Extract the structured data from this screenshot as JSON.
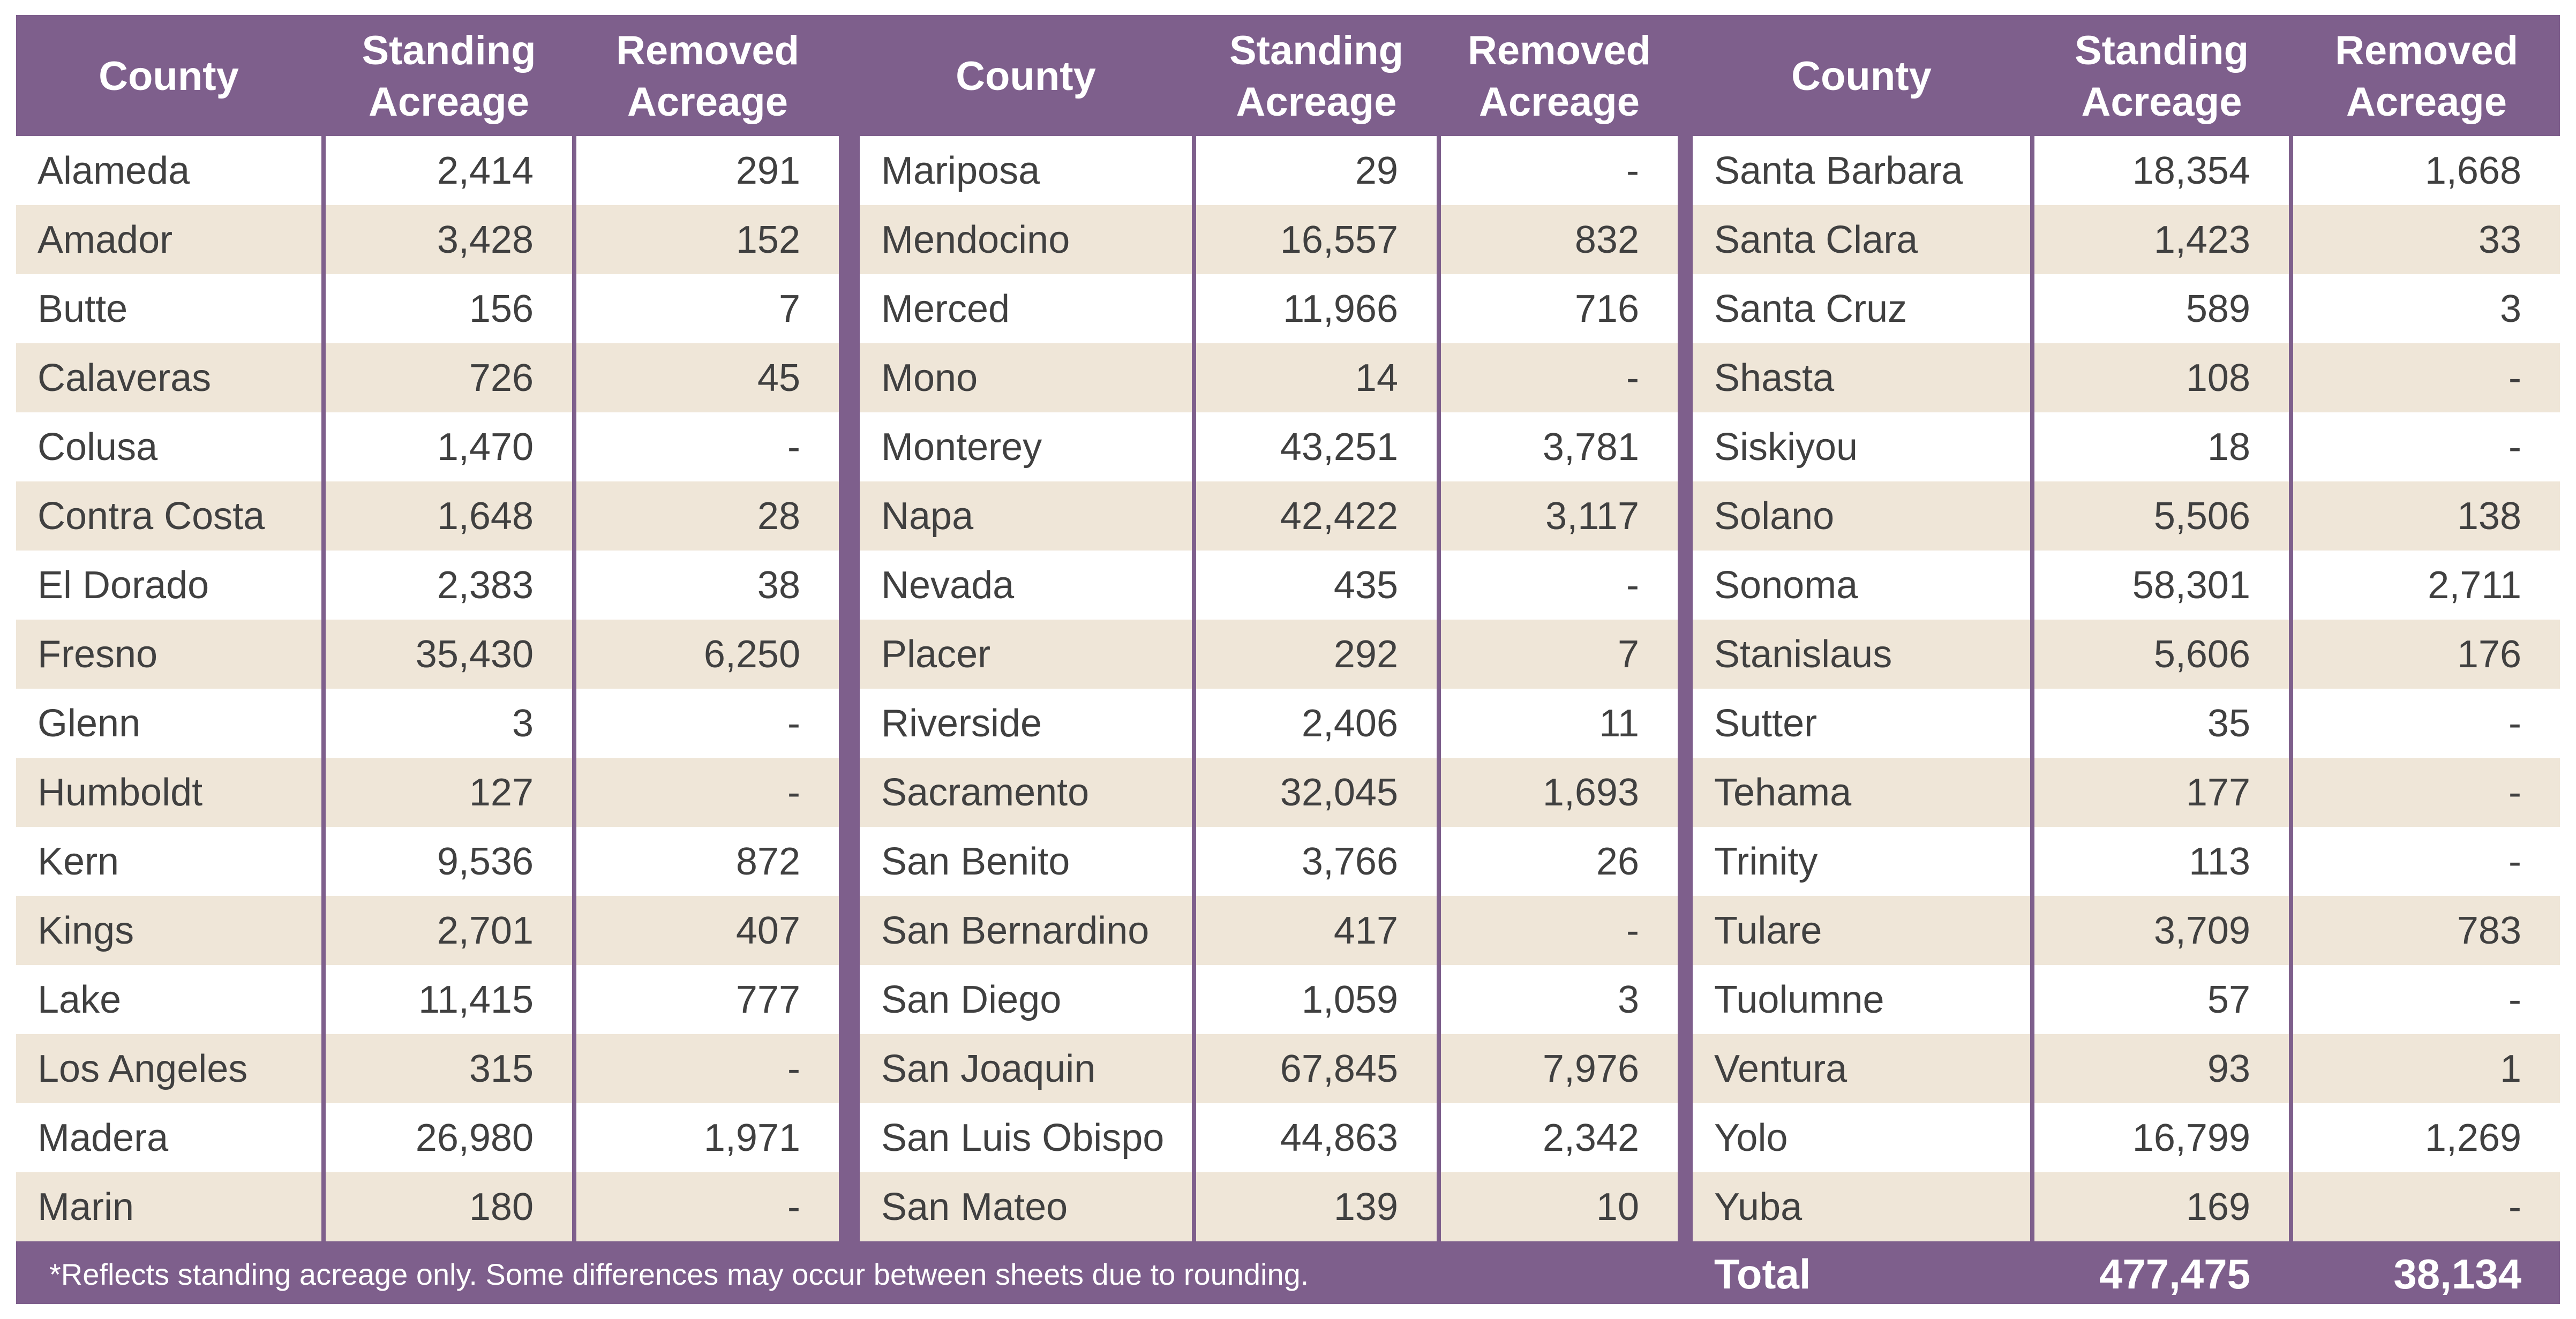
{
  "headers": {
    "county": "County",
    "standing": "Standing Acreage",
    "removed": "Removed Acreage"
  },
  "panels": [
    {
      "rows": [
        {
          "county": "Alameda",
          "standing": "2,414",
          "removed": "291"
        },
        {
          "county": "Amador",
          "standing": "3,428",
          "removed": "152"
        },
        {
          "county": "Butte",
          "standing": "156",
          "removed": "7"
        },
        {
          "county": "Calaveras",
          "standing": "726",
          "removed": "45"
        },
        {
          "county": "Colusa",
          "standing": "1,470",
          "removed": "-"
        },
        {
          "county": "Contra Costa",
          "standing": "1,648",
          "removed": "28"
        },
        {
          "county": "El Dorado",
          "standing": "2,383",
          "removed": "38"
        },
        {
          "county": "Fresno",
          "standing": "35,430",
          "removed": "6,250"
        },
        {
          "county": "Glenn",
          "standing": "3",
          "removed": "-"
        },
        {
          "county": "Humboldt",
          "standing": "127",
          "removed": "-"
        },
        {
          "county": "Kern",
          "standing": "9,536",
          "removed": "872"
        },
        {
          "county": "Kings",
          "standing": "2,701",
          "removed": "407"
        },
        {
          "county": "Lake",
          "standing": "11,415",
          "removed": "777"
        },
        {
          "county": "Los Angeles",
          "standing": "315",
          "removed": "-"
        },
        {
          "county": "Madera",
          "standing": "26,980",
          "removed": "1,971"
        },
        {
          "county": "Marin",
          "standing": "180",
          "removed": "-"
        }
      ]
    },
    {
      "rows": [
        {
          "county": "Mariposa",
          "standing": "29",
          "removed": "-"
        },
        {
          "county": "Mendocino",
          "standing": "16,557",
          "removed": "832"
        },
        {
          "county": "Merced",
          "standing": "11,966",
          "removed": "716"
        },
        {
          "county": "Mono",
          "standing": "14",
          "removed": "-"
        },
        {
          "county": "Monterey",
          "standing": "43,251",
          "removed": "3,781"
        },
        {
          "county": "Napa",
          "standing": "42,422",
          "removed": "3,117"
        },
        {
          "county": "Nevada",
          "standing": "435",
          "removed": "-"
        },
        {
          "county": "Placer",
          "standing": "292",
          "removed": "7"
        },
        {
          "county": "Riverside",
          "standing": "2,406",
          "removed": "11"
        },
        {
          "county": "Sacramento",
          "standing": "32,045",
          "removed": "1,693"
        },
        {
          "county": "San Benito",
          "standing": "3,766",
          "removed": "26"
        },
        {
          "county": "San Bernardino",
          "standing": "417",
          "removed": "-"
        },
        {
          "county": "San Diego",
          "standing": "1,059",
          "removed": "3"
        },
        {
          "county": "San Joaquin",
          "standing": "67,845",
          "removed": "7,976"
        },
        {
          "county": "San Luis Obispo",
          "standing": "44,863",
          "removed": "2,342"
        },
        {
          "county": "San Mateo",
          "standing": "139",
          "removed": "10"
        }
      ]
    },
    {
      "rows": [
        {
          "county": "Santa Barbara",
          "standing": "18,354",
          "removed": "1,668"
        },
        {
          "county": "Santa Clara",
          "standing": "1,423",
          "removed": "33"
        },
        {
          "county": "Santa Cruz",
          "standing": "589",
          "removed": "3"
        },
        {
          "county": "Shasta",
          "standing": "108",
          "removed": "-"
        },
        {
          "county": "Siskiyou",
          "standing": "18",
          "removed": "-"
        },
        {
          "county": "Solano",
          "standing": "5,506",
          "removed": "138"
        },
        {
          "county": "Sonoma",
          "standing": "58,301",
          "removed": "2,711"
        },
        {
          "county": "Stanislaus",
          "standing": "5,606",
          "removed": "176"
        },
        {
          "county": "Sutter",
          "standing": "35",
          "removed": "-"
        },
        {
          "county": "Tehama",
          "standing": "177",
          "removed": "-"
        },
        {
          "county": "Trinity",
          "standing": "113",
          "removed": "-"
        },
        {
          "county": "Tulare",
          "standing": "3,709",
          "removed": "783"
        },
        {
          "county": "Tuolumne",
          "standing": "57",
          "removed": "-"
        },
        {
          "county": "Ventura",
          "standing": "93",
          "removed": "1"
        },
        {
          "county": "Yolo",
          "standing": "16,799",
          "removed": "1,269"
        },
        {
          "county": "Yuba",
          "standing": "169",
          "removed": "-"
        }
      ]
    }
  ],
  "footer": {
    "note": "*Reflects standing acreage only. Some differences may occur between sheets due to rounding.",
    "total_label": "Total",
    "total_standing": "477,475",
    "total_removed": "38,134"
  },
  "colors": {
    "header_bg": "#7e5f8c",
    "band_row": "#efe6d8",
    "plain_row": "#ffffff",
    "text": "#404040"
  }
}
